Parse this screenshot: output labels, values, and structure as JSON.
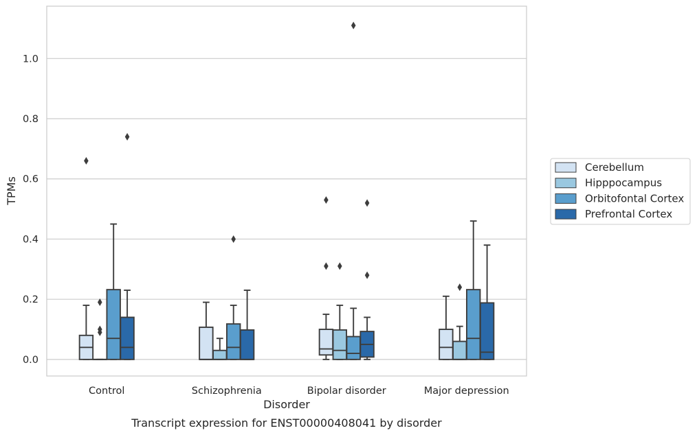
{
  "chart_data": {
    "type": "box",
    "xlabel": "Disorder",
    "ylabel": "TPMs",
    "caption": "Transcript expression for ENST00000408041 by disorder",
    "categories": [
      "Control",
      "Schizophrenia",
      "Bipolar disorder",
      "Major depression"
    ],
    "yticks": [
      "0.0",
      "0.2",
      "0.4",
      "0.6",
      "0.8",
      "1.0"
    ],
    "ylim": [
      -0.055,
      1.174
    ],
    "grid": "horizontal",
    "legend_position": "right",
    "series": [
      {
        "name": "Cerebellum",
        "color": "#d3e3f3",
        "boxes": [
          {
            "whislo": 0.0,
            "q1": 0.0,
            "med": 0.04,
            "q3": 0.08,
            "whishi": 0.18,
            "fliers": [
              0.66
            ]
          },
          {
            "whislo": 0.0,
            "q1": 0.0,
            "med": 0.0,
            "q3": 0.107,
            "whishi": 0.19,
            "fliers": []
          },
          {
            "whislo": 0.0,
            "q1": 0.015,
            "med": 0.035,
            "q3": 0.1,
            "whishi": 0.15,
            "fliers": [
              0.31,
              0.53
            ]
          },
          {
            "whislo": 0.0,
            "q1": 0.0,
            "med": 0.04,
            "q3": 0.1,
            "whishi": 0.21,
            "fliers": []
          }
        ]
      },
      {
        "name": "Hipppocampus",
        "color": "#9ac8e0",
        "boxes": [
          {
            "whislo": 0.0,
            "q1": 0.0,
            "med": 0.0,
            "q3": 0.0,
            "whishi": 0.0,
            "fliers": [
              0.09,
              0.1,
              0.19
            ]
          },
          {
            "whislo": 0.0,
            "q1": 0.0,
            "med": 0.0,
            "q3": 0.03,
            "whishi": 0.07,
            "fliers": []
          },
          {
            "whislo": 0.0,
            "q1": 0.0,
            "med": 0.03,
            "q3": 0.098,
            "whishi": 0.18,
            "fliers": [
              0.31
            ]
          },
          {
            "whislo": 0.0,
            "q1": 0.0,
            "med": 0.0,
            "q3": 0.06,
            "whishi": 0.11,
            "fliers": [
              0.24
            ]
          }
        ]
      },
      {
        "name": "Orbitofontal Cortex",
        "color": "#5a9ecd",
        "boxes": [
          {
            "whislo": 0.0,
            "q1": 0.0,
            "med": 0.07,
            "q3": 0.232,
            "whishi": 0.45,
            "fliers": []
          },
          {
            "whislo": 0.0,
            "q1": 0.0,
            "med": 0.04,
            "q3": 0.118,
            "whishi": 0.18,
            "fliers": [
              0.4
            ]
          },
          {
            "whislo": 0.0,
            "q1": 0.0,
            "med": 0.02,
            "q3": 0.076,
            "whishi": 0.17,
            "fliers": [
              1.11
            ]
          },
          {
            "whislo": 0.0,
            "q1": 0.0,
            "med": 0.07,
            "q3": 0.232,
            "whishi": 0.46,
            "fliers": []
          }
        ]
      },
      {
        "name": "Prefrontal Cortex",
        "color": "#2a69a9",
        "boxes": [
          {
            "whislo": 0.0,
            "q1": 0.0,
            "med": 0.04,
            "q3": 0.14,
            "whishi": 0.23,
            "fliers": [
              0.74
            ]
          },
          {
            "whislo": 0.0,
            "q1": 0.0,
            "med": 0.0,
            "q3": 0.098,
            "whishi": 0.23,
            "fliers": []
          },
          {
            "whislo": 0.0,
            "q1": 0.008,
            "med": 0.05,
            "q3": 0.093,
            "whishi": 0.14,
            "fliers": [
              0.28,
              0.52
            ]
          },
          {
            "whislo": 0.0,
            "q1": 0.0,
            "med": 0.024,
            "q3": 0.188,
            "whishi": 0.38,
            "fliers": []
          }
        ]
      }
    ]
  }
}
